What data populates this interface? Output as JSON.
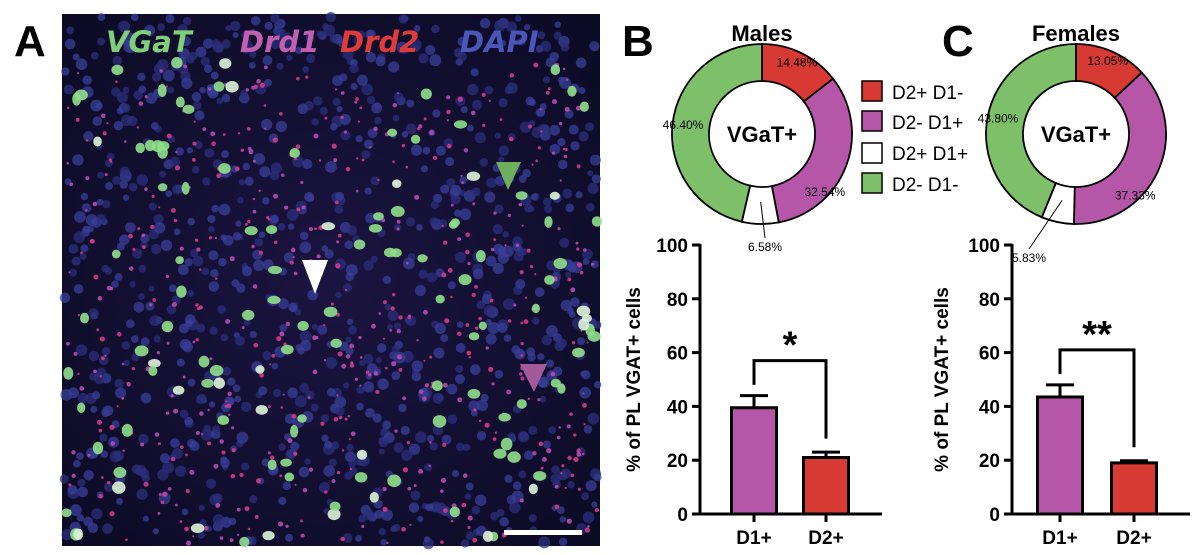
{
  "panels": {
    "a": "A",
    "b": "B",
    "c": "C"
  },
  "micrograph": {
    "channels": [
      {
        "label": "VGaT",
        "color": "#7fcf7a"
      },
      {
        "label": "Drd1",
        "color": "#c15fb0"
      },
      {
        "label": "Drd2",
        "color": "#e03a3a"
      },
      {
        "label": "DAPI",
        "color": "#4a56b8"
      }
    ],
    "arrowheads": [
      "white",
      "green",
      "magenta"
    ]
  },
  "legend": [
    {
      "label": "D2+ D1-",
      "color": "#d63a33"
    },
    {
      "label": "D2- D1+",
      "color": "#b556a8"
    },
    {
      "label": "D2+ D1+",
      "color": "#ffffff"
    },
    {
      "label": "D2- D1-",
      "color": "#7ebf6a"
    }
  ],
  "chart_data": [
    {
      "type": "pie",
      "title": "Males",
      "center_label": "VGaT+",
      "slices": [
        {
          "label": "D2+ D1-",
          "value": 14.48,
          "display": "14.48%",
          "color": "#d63a33"
        },
        {
          "label": "D2- D1+",
          "value": 32.54,
          "display": "32.54%",
          "color": "#b556a8"
        },
        {
          "label": "D2+ D1+",
          "value": 6.58,
          "display": "6.58%",
          "color": "#ffffff"
        },
        {
          "label": "D2- D1-",
          "value": 46.4,
          "display": "46.40%",
          "color": "#7ebf6a"
        }
      ]
    },
    {
      "type": "pie",
      "title": "Females",
      "center_label": "VGaT+",
      "slices": [
        {
          "label": "D2+ D1-",
          "value": 13.05,
          "display": "13.05%",
          "color": "#d63a33"
        },
        {
          "label": "D2- D1+",
          "value": 37.33,
          "display": "37.33%",
          "color": "#b556a8"
        },
        {
          "label": "D2+ D1+",
          "value": 5.83,
          "display": "5.83%",
          "color": "#ffffff"
        },
        {
          "label": "D2- D1-",
          "value": 43.8,
          "display": "43.80%",
          "color": "#7ebf6a"
        }
      ]
    },
    {
      "type": "bar",
      "panel": "Males",
      "categories": [
        "D1+",
        "D2+"
      ],
      "values": [
        39.5,
        21
      ],
      "errors": [
        4.5,
        2
      ],
      "colors": [
        "#b556a8",
        "#d63a33"
      ],
      "ylabel": "% of PL VGAT+ cells",
      "ylim": [
        0,
        100
      ],
      "yticks": [
        "0",
        "20",
        "40",
        "60",
        "80",
        "100"
      ],
      "significance": "*"
    },
    {
      "type": "bar",
      "panel": "Females",
      "categories": [
        "D1+",
        "D2+"
      ],
      "values": [
        43.5,
        19
      ],
      "errors": [
        4.5,
        0.8
      ],
      "colors": [
        "#b556a8",
        "#d63a33"
      ],
      "ylabel": "% of PL VGAT+ cells",
      "ylim": [
        0,
        100
      ],
      "yticks": [
        "0",
        "20",
        "40",
        "60",
        "80",
        "100"
      ],
      "significance": "**"
    }
  ]
}
